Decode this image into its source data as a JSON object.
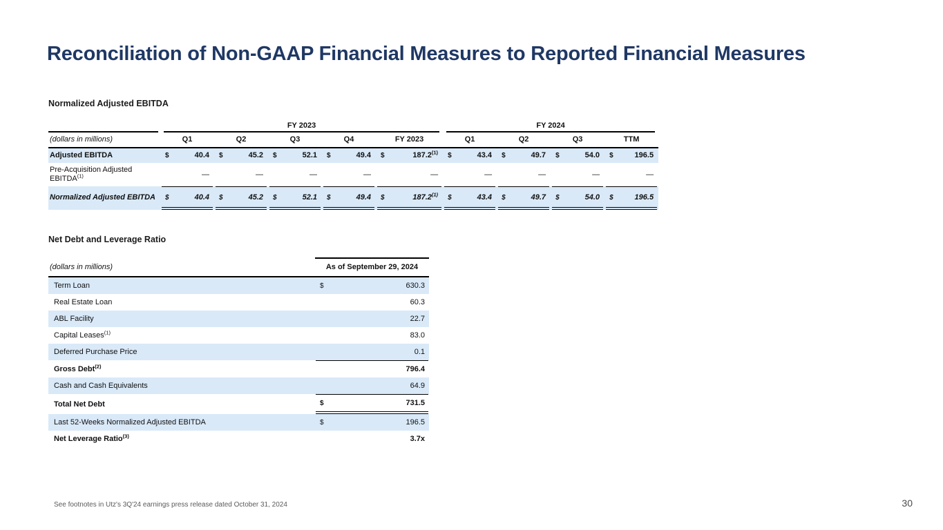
{
  "slide": {
    "title": "Reconciliation of Non-GAAP Financial Measures to Reported Financial Measures",
    "footnote": "See footnotes in Utz's 3Q'24 earnings press release dated October 31, 2024",
    "page_number": "30"
  },
  "colors": {
    "title_navy": "#1F3864",
    "highlight_row_blue": "#D9E9F8",
    "rule_black": "#000000"
  },
  "ebitda_table": {
    "heading": "Normalized Adjusted EBITDA",
    "units_label": "(dollars in millions)",
    "group_headers": [
      {
        "label": "FY 2023",
        "span": 5
      },
      {
        "label": "FY 2024",
        "span": 4
      }
    ],
    "columns": [
      "Q1",
      "Q2",
      "Q3",
      "Q4",
      "FY 2023",
      "Q1",
      "Q2",
      "Q3",
      "TTM"
    ],
    "rows": [
      {
        "label": "Adjusted EBITDA",
        "highlight": true,
        "bold": true,
        "cells": [
          {
            "currency": "$",
            "value": "40.4"
          },
          {
            "currency": "$",
            "value": "45.2"
          },
          {
            "currency": "$",
            "value": "52.1"
          },
          {
            "currency": "$",
            "value": "49.4"
          },
          {
            "currency": "$",
            "value": "187.2",
            "sup": "(1)"
          },
          {
            "currency": "$",
            "value": "43.4"
          },
          {
            "currency": "$",
            "value": "49.7"
          },
          {
            "currency": "$",
            "value": "54.0"
          },
          {
            "currency": "$",
            "value": "196.5"
          }
        ]
      },
      {
        "label": "Pre-Acquisition Adjusted EBITDA",
        "label_sup": "(1)",
        "highlight": false,
        "cells": [
          {
            "value": "—"
          },
          {
            "value": "—"
          },
          {
            "value": "—"
          },
          {
            "value": "—"
          },
          {
            "value": "—"
          },
          {
            "value": "—"
          },
          {
            "value": "—"
          },
          {
            "value": "—"
          },
          {
            "value": "—"
          }
        ]
      },
      {
        "label": "Normalized Adjusted EBITDA",
        "highlight": true,
        "total": true,
        "cells": [
          {
            "currency": "$",
            "value": "40.4"
          },
          {
            "currency": "$",
            "value": "45.2"
          },
          {
            "currency": "$",
            "value": "52.1"
          },
          {
            "currency": "$",
            "value": "49.4"
          },
          {
            "currency": "$",
            "value": "187.2",
            "sup": "(1)"
          },
          {
            "currency": "$",
            "value": "43.4"
          },
          {
            "currency": "$",
            "value": "49.7"
          },
          {
            "currency": "$",
            "value": "54.0"
          },
          {
            "currency": "$",
            "value": "196.5"
          }
        ]
      }
    ]
  },
  "net_debt_table": {
    "heading": "Net Debt and Leverage Ratio",
    "units_label": "(dollars in millions)",
    "value_header": "As of September 29, 2024",
    "rows": [
      {
        "label": "Term Loan",
        "currency": "$",
        "value": "630.3",
        "highlight": true
      },
      {
        "label": "Real Estate Loan",
        "value": "60.3"
      },
      {
        "label": "ABL Facility",
        "value": "22.7",
        "highlight": true
      },
      {
        "label": "Capital Leases",
        "label_sup": "(1)",
        "value": "83.0"
      },
      {
        "label": "Deferred Purchase Price",
        "value": "0.1",
        "highlight": true
      },
      {
        "label": "Gross Debt",
        "label_sup": "(2)",
        "value": "796.4",
        "bold": true,
        "top_line": true
      },
      {
        "label": "Cash and Cash Equivalents",
        "value": "64.9",
        "highlight": true
      },
      {
        "label": "Total Net Debt",
        "currency": "$",
        "value": "731.5",
        "bold": true,
        "top_line": true,
        "double_underline": true
      },
      {
        "label": "Last 52-Weeks Normalized Adjusted EBITDA",
        "currency": "$",
        "value": "196.5",
        "highlight": true
      },
      {
        "label": "Net Leverage Ratio",
        "label_sup": "(3)",
        "value": "3.7x",
        "bold": true
      }
    ]
  }
}
